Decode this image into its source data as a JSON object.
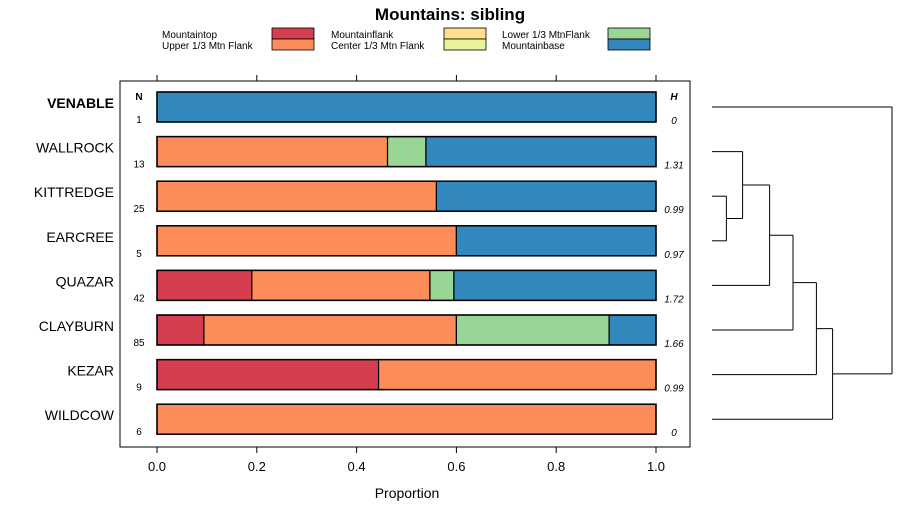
{
  "chart_data": {
    "type": "bar",
    "stacked": true,
    "orientation": "horizontal",
    "title": "Mountains: sibling",
    "xlabel": "Proportion",
    "ylabel": "",
    "xlim": [
      0,
      1
    ],
    "xticks": [
      "0.0",
      "0.2",
      "0.4",
      "0.6",
      "0.8",
      "1.0"
    ],
    "n_header": "N",
    "h_header": "H",
    "legend": [
      {
        "name": "Mountaintop",
        "color": "#d53e4f"
      },
      {
        "name": "Upper 1/3 Mtn Flank",
        "color": "#fc8d59"
      },
      {
        "name": "Mountainflank",
        "color": "#fee08b"
      },
      {
        "name": "Center 1/3 Mtn Flank",
        "color": "#e6f598"
      },
      {
        "name": "Lower 1/3 MtnFlank",
        "color": "#99d594"
      },
      {
        "name": "Mountainbase",
        "color": "#3288bd"
      }
    ],
    "rows": [
      {
        "name": "VENABLE",
        "bold": true,
        "n": "1",
        "h": "0",
        "segments": [
          {
            "category": "Mountainbase",
            "value": 1.0
          }
        ]
      },
      {
        "name": "WALLROCK",
        "bold": false,
        "n": "13",
        "h": "1.31",
        "segments": [
          {
            "category": "Upper 1/3 Mtn Flank",
            "value": 0.462
          },
          {
            "category": "Lower 1/3 MtnFlank",
            "value": 0.077
          },
          {
            "category": "Mountainbase",
            "value": 0.461
          }
        ]
      },
      {
        "name": "KITTREDGE",
        "bold": false,
        "n": "25",
        "h": "0.99",
        "segments": [
          {
            "category": "Upper 1/3 Mtn Flank",
            "value": 0.56
          },
          {
            "category": "Mountainbase",
            "value": 0.44
          }
        ]
      },
      {
        "name": "EARCREE",
        "bold": false,
        "n": "5",
        "h": "0.97",
        "segments": [
          {
            "category": "Upper 1/3 Mtn Flank",
            "value": 0.6
          },
          {
            "category": "Mountainbase",
            "value": 0.4
          }
        ]
      },
      {
        "name": "QUAZAR",
        "bold": false,
        "n": "42",
        "h": "1.72",
        "segments": [
          {
            "category": "Mountaintop",
            "value": 0.19
          },
          {
            "category": "Upper 1/3 Mtn Flank",
            "value": 0.357
          },
          {
            "category": "Lower 1/3 MtnFlank",
            "value": 0.048
          },
          {
            "category": "Mountainbase",
            "value": 0.405
          }
        ]
      },
      {
        "name": "CLAYBURN",
        "bold": false,
        "n": "85",
        "h": "1.66",
        "segments": [
          {
            "category": "Mountaintop",
            "value": 0.094
          },
          {
            "category": "Upper 1/3 Mtn Flank",
            "value": 0.506
          },
          {
            "category": "Lower 1/3 MtnFlank",
            "value": 0.306
          },
          {
            "category": "Mountainbase",
            "value": 0.094
          }
        ]
      },
      {
        "name": "KEZAR",
        "bold": false,
        "n": "9",
        "h": "0.99",
        "segments": [
          {
            "category": "Mountaintop",
            "value": 0.444
          },
          {
            "category": "Upper 1/3 Mtn Flank",
            "value": 0.556
          }
        ]
      },
      {
        "name": "WILDCOW",
        "bold": false,
        "n": "6",
        "h": "0",
        "segments": [
          {
            "category": "Upper 1/3 Mtn Flank",
            "value": 1.0
          }
        ]
      }
    ],
    "dendrogram": {
      "description": "sibling clustering of rows",
      "merges": [
        {
          "id": "m1",
          "left": "KITTREDGE",
          "right": "EARCREE",
          "height": 0.08
        },
        {
          "id": "m2",
          "left": "WALLROCK",
          "right": "m1",
          "height": 0.17
        },
        {
          "id": "m3",
          "left": "m2",
          "right": "QUAZAR",
          "height": 0.32
        },
        {
          "id": "m4",
          "left": "m3",
          "right": "CLAYBURN",
          "height": 0.45
        },
        {
          "id": "m5",
          "left": "m4",
          "right": "KEZAR",
          "height": 0.58
        },
        {
          "id": "m6",
          "left": "m5",
          "right": "WILDCOW",
          "height": 0.67
        },
        {
          "id": "m7",
          "left": "VENABLE",
          "right": "m6",
          "height": 1.0
        }
      ]
    }
  }
}
